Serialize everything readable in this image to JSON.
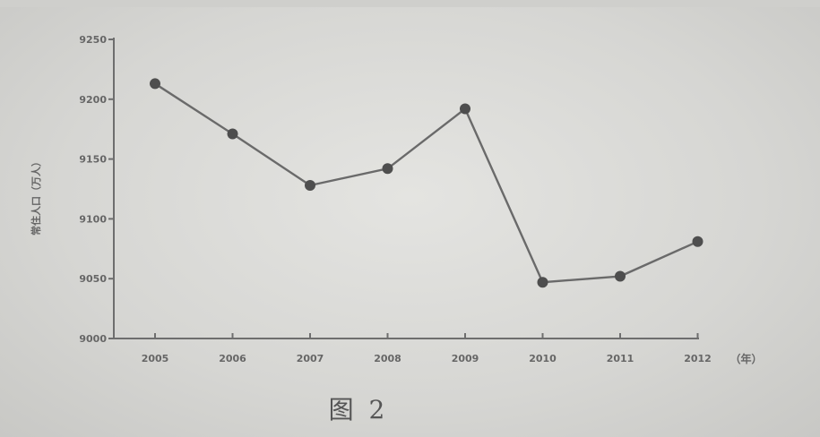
{
  "figure": {
    "caption": "图 2"
  },
  "chart_data": {
    "type": "line",
    "ylabel": "常住人口（万人）",
    "xlabel_unit": "（年）",
    "ylim": [
      9000,
      9250
    ],
    "y_ticks": [
      "9000",
      "9050",
      "9100",
      "9150",
      "9200",
      "9250"
    ],
    "categories": [
      "2005",
      "2006",
      "2007",
      "2008",
      "2009",
      "2010",
      "2011",
      "2012"
    ],
    "series": [
      {
        "values": [
          9213,
          9171,
          9128,
          9142,
          9192,
          9047,
          9052,
          9081
        ]
      }
    ],
    "grid": false,
    "line_color": "#6a6a6a",
    "marker_color": "#4e4e4e"
  }
}
